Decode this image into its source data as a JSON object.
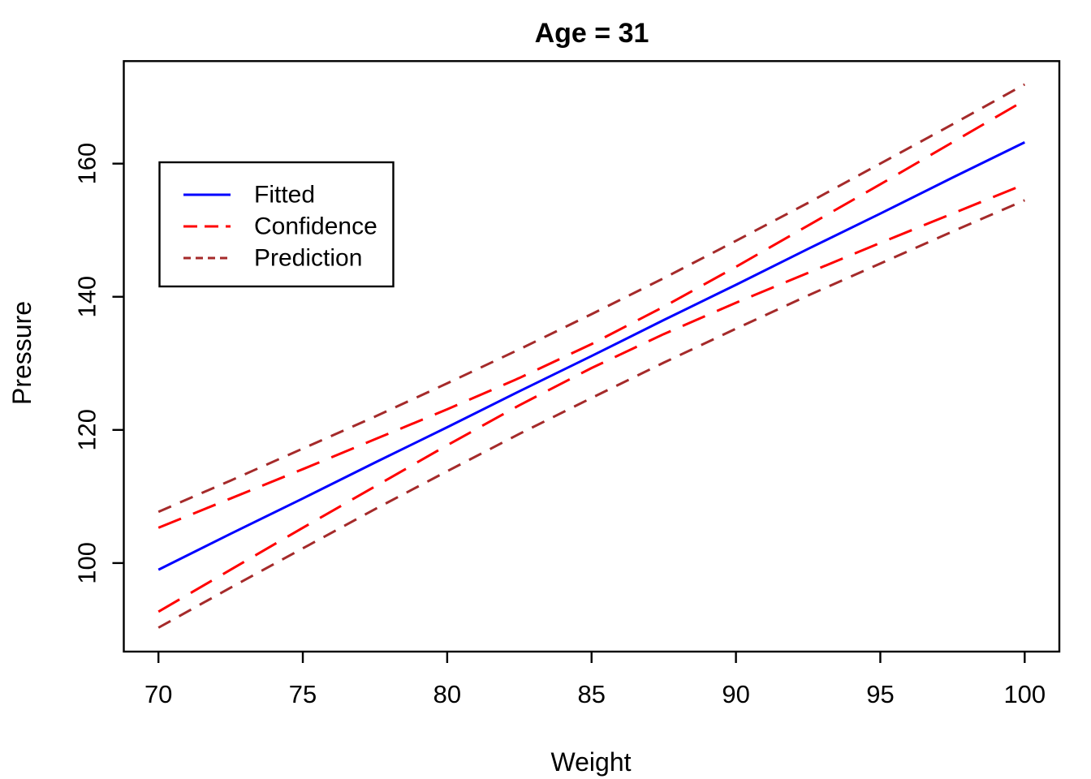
{
  "chart_data": {
    "type": "line",
    "title": "Age = 31",
    "xlabel": "Weight",
    "ylabel": "Pressure",
    "x_ticks": [
      70,
      75,
      80,
      85,
      90,
      95,
      100
    ],
    "y_ticks": [
      100,
      120,
      140,
      160
    ],
    "xlim": [
      68.8,
      101.2
    ],
    "ylim": [
      86.7,
      175.4
    ],
    "grid": false,
    "legend_position": "topleft",
    "x": [
      70,
      72.5,
      75,
      77.5,
      80,
      82.5,
      85,
      87.5,
      90,
      92.5,
      95,
      97.5,
      100
    ],
    "series": [
      {
        "name": "Prediction upper",
        "color": "#a52a2a",
        "style": "short-dashed",
        "values": [
          107.7,
          112.4,
          117.2,
          122.0,
          127.0,
          132.1,
          137.4,
          142.8,
          148.4,
          154.1,
          160.0,
          165.9,
          171.9
        ]
      },
      {
        "name": "Prediction lower",
        "color": "#a52a2a",
        "style": "short-dashed",
        "values": [
          90.3,
          96.3,
          102.2,
          108.1,
          113.8,
          119.4,
          124.8,
          130.1,
          135.2,
          140.2,
          145.0,
          149.8,
          154.5
        ]
      },
      {
        "name": "Confidence upper",
        "color": "#ff0000",
        "style": "dashed",
        "values": [
          105.3,
          109.7,
          114.1,
          118.6,
          123.1,
          127.8,
          132.9,
          138.5,
          144.5,
          150.7,
          156.9,
          163.2,
          169.5
        ]
      },
      {
        "name": "Confidence lower",
        "color": "#ff0000",
        "style": "dashed",
        "values": [
          92.7,
          99.0,
          105.3,
          111.5,
          117.7,
          123.7,
          129.3,
          134.4,
          139.1,
          143.6,
          148.1,
          152.5,
          156.9
        ]
      },
      {
        "name": "Fitted",
        "color": "#0000ff",
        "style": "solid",
        "values": [
          99.0,
          104.4,
          109.7,
          115.1,
          120.4,
          125.8,
          131.1,
          136.5,
          141.8,
          147.2,
          152.5,
          157.9,
          163.2
        ]
      }
    ],
    "legend": {
      "items": [
        {
          "label": "Fitted",
          "color": "#0000ff",
          "style": "solid"
        },
        {
          "label": "Confidence",
          "color": "#ff0000",
          "style": "dashed"
        },
        {
          "label": "Prediction",
          "color": "#a52a2a",
          "style": "short-dashed"
        }
      ]
    }
  },
  "colors": {
    "fitted": "#0000ff",
    "confidence": "#ff0000",
    "prediction": "#a52a2a",
    "axis": "#000000",
    "background": "#ffffff"
  }
}
